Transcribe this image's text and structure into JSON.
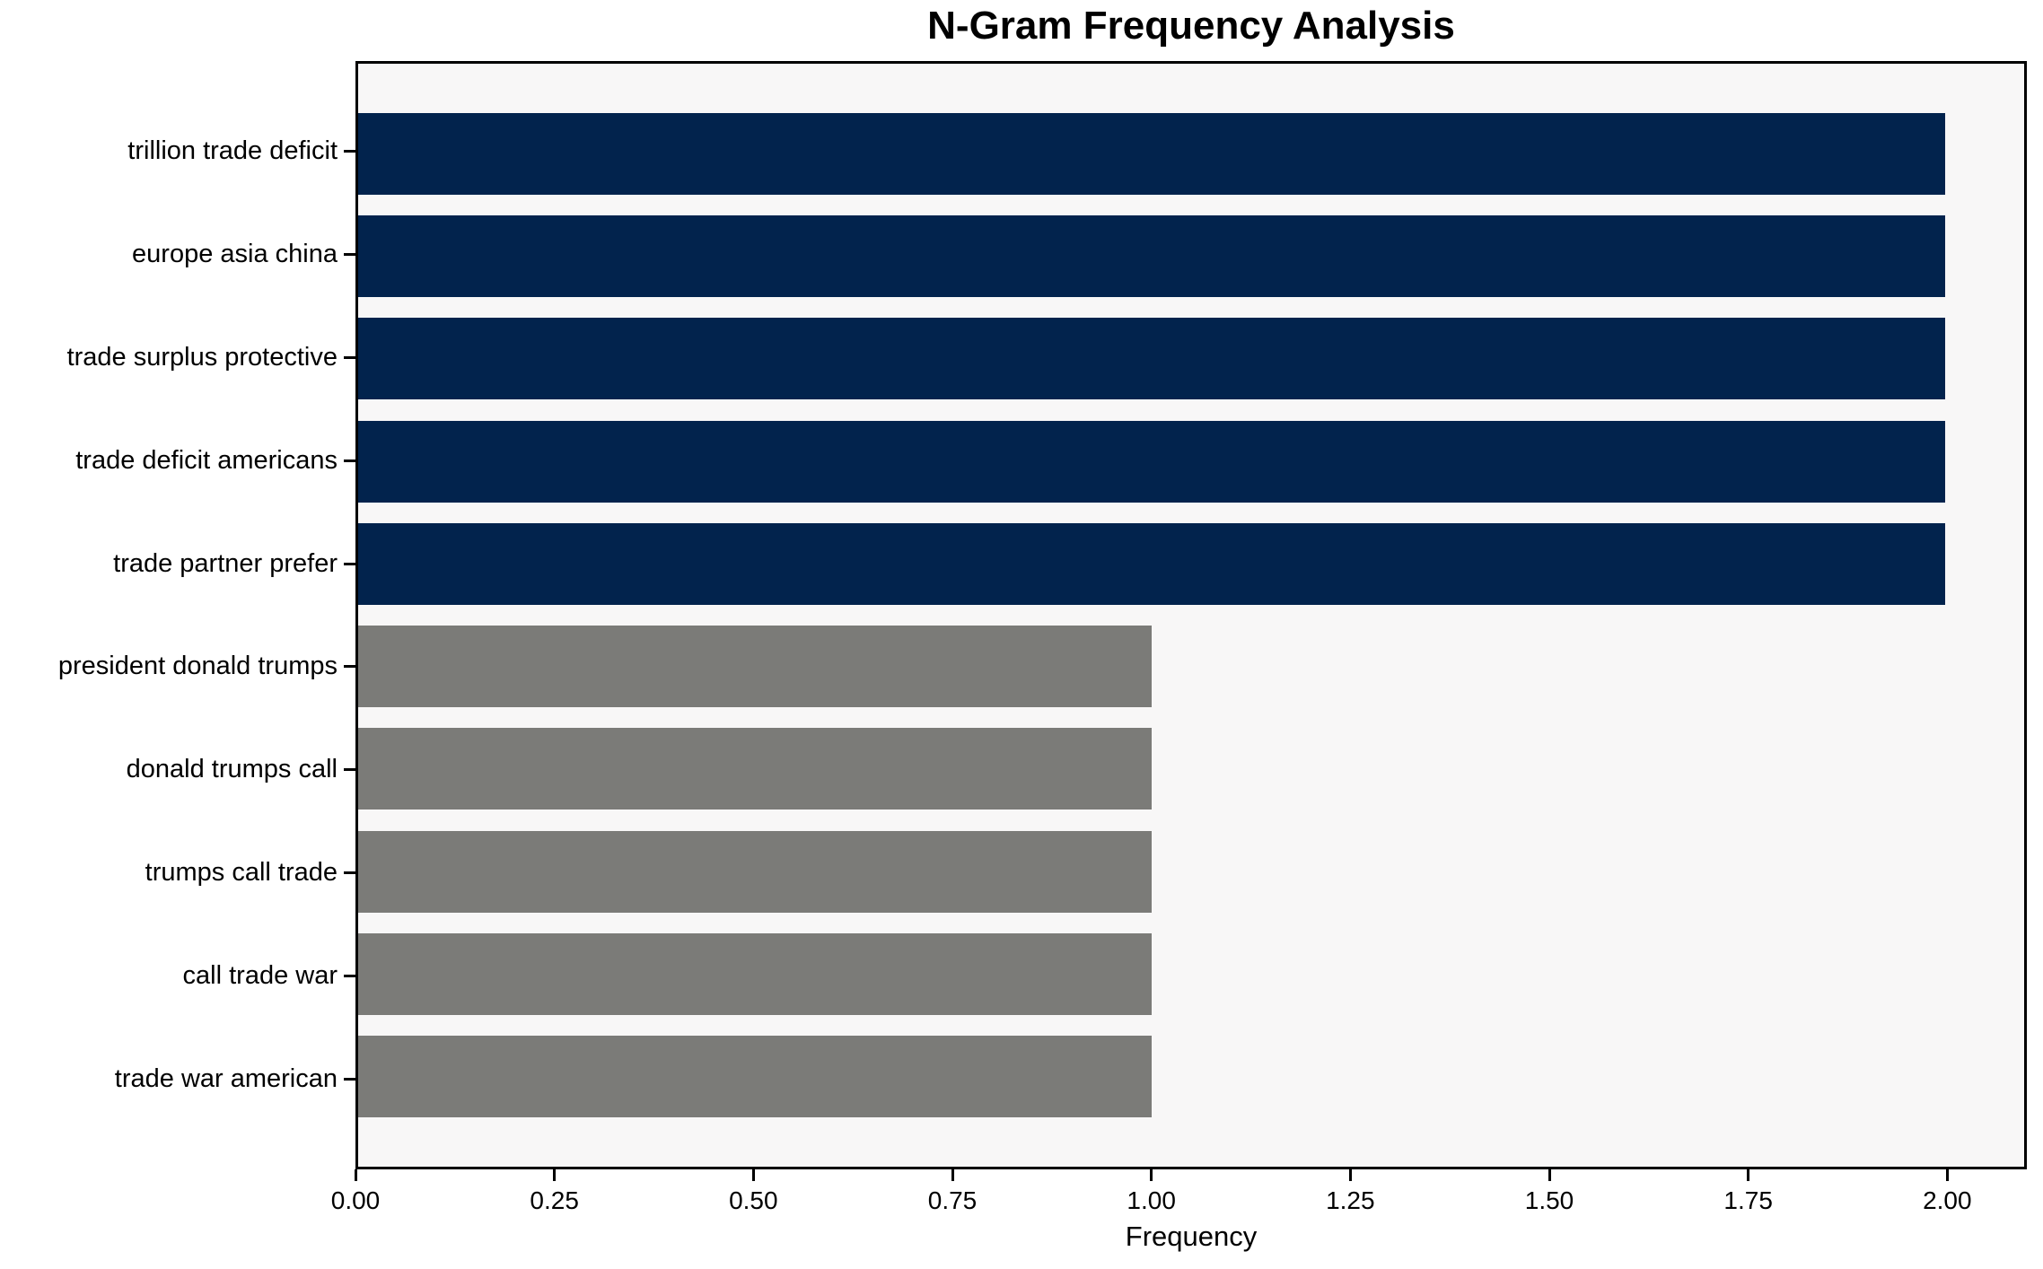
{
  "chart_data": {
    "type": "bar",
    "orientation": "horizontal",
    "title": "N-Gram Frequency Analysis",
    "xlabel": "Frequency",
    "ylabel": "",
    "categories": [
      "trillion trade deficit",
      "europe asia china",
      "trade surplus protective",
      "trade deficit americans",
      "trade partner prefer",
      "president donald trumps",
      "donald trumps call",
      "trumps call trade",
      "call trade war",
      "trade war american"
    ],
    "values": [
      2,
      2,
      2,
      2,
      2,
      1,
      1,
      1,
      1,
      1
    ],
    "bar_colors": [
      "#02234d",
      "#02234d",
      "#02234d",
      "#02234d",
      "#02234d",
      "#7b7b78",
      "#7b7b78",
      "#7b7b78",
      "#7b7b78",
      "#7b7b78"
    ],
    "xlim": [
      0,
      2.1
    ],
    "x_ticks": [
      0.0,
      0.25,
      0.5,
      0.75,
      1.0,
      1.25,
      1.5,
      1.75,
      2.0
    ],
    "x_tick_labels": [
      "0.00",
      "0.25",
      "0.50",
      "0.75",
      "1.00",
      "1.25",
      "1.50",
      "1.75",
      "2.00"
    ],
    "grid": "off",
    "legend": "none",
    "colors": {
      "highlight": "#02234d",
      "default": "#7b7b78",
      "plot_background": "#f8f7f7",
      "figure_background": "#ffffff",
      "spine": "#000000",
      "text": "#000000"
    }
  }
}
